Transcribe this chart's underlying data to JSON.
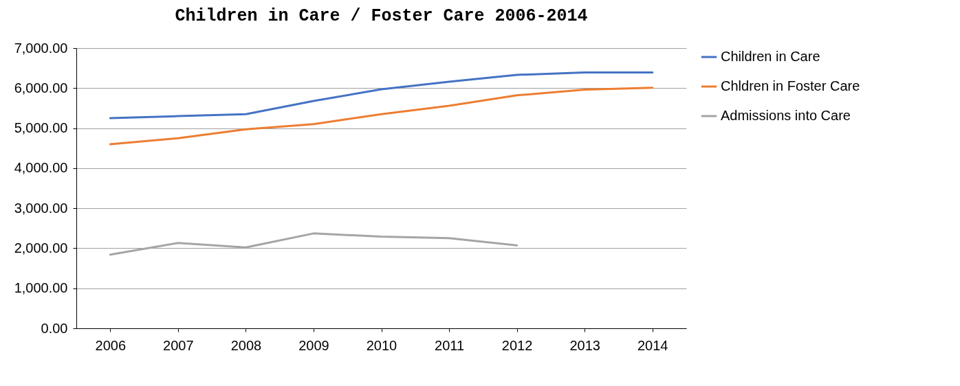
{
  "chart_data": {
    "type": "line",
    "title": "Children in Care / Foster Care 2006-2014",
    "categories": [
      "2006",
      "2007",
      "2008",
      "2009",
      "2010",
      "2011",
      "2012",
      "2013",
      "2014"
    ],
    "series": [
      {
        "name": "Children in Care",
        "color": "#4472c4",
        "values": [
          5250,
          5300,
          5350,
          5680,
          5970,
          6160,
          6330,
          6390,
          6390
        ]
      },
      {
        "name": "Chldren in Foster Care",
        "color": "#ed7d31",
        "values": [
          4600,
          4750,
          4970,
          5100,
          5350,
          5560,
          5820,
          5960,
          6010
        ]
      },
      {
        "name": "Admissions into Care",
        "color": "#a5a5a5",
        "values": [
          1840,
          2130,
          2020,
          2370,
          2290,
          2250,
          2070,
          null,
          null
        ]
      }
    ],
    "ylim": [
      0,
      7000
    ],
    "yticks": [
      {
        "value": 0,
        "label": "0.00"
      },
      {
        "value": 1000,
        "label": "1,000.00"
      },
      {
        "value": 2000,
        "label": "2,000.00"
      },
      {
        "value": 3000,
        "label": "3,000.00"
      },
      {
        "value": 4000,
        "label": "4,000.00"
      },
      {
        "value": 5000,
        "label": "5,000.00"
      },
      {
        "value": 6000,
        "label": "6,000.00"
      },
      {
        "value": 7000,
        "label": "7,000.00"
      }
    ],
    "grid": "y",
    "legend": "right",
    "marker": "none",
    "line_style": "solid"
  }
}
